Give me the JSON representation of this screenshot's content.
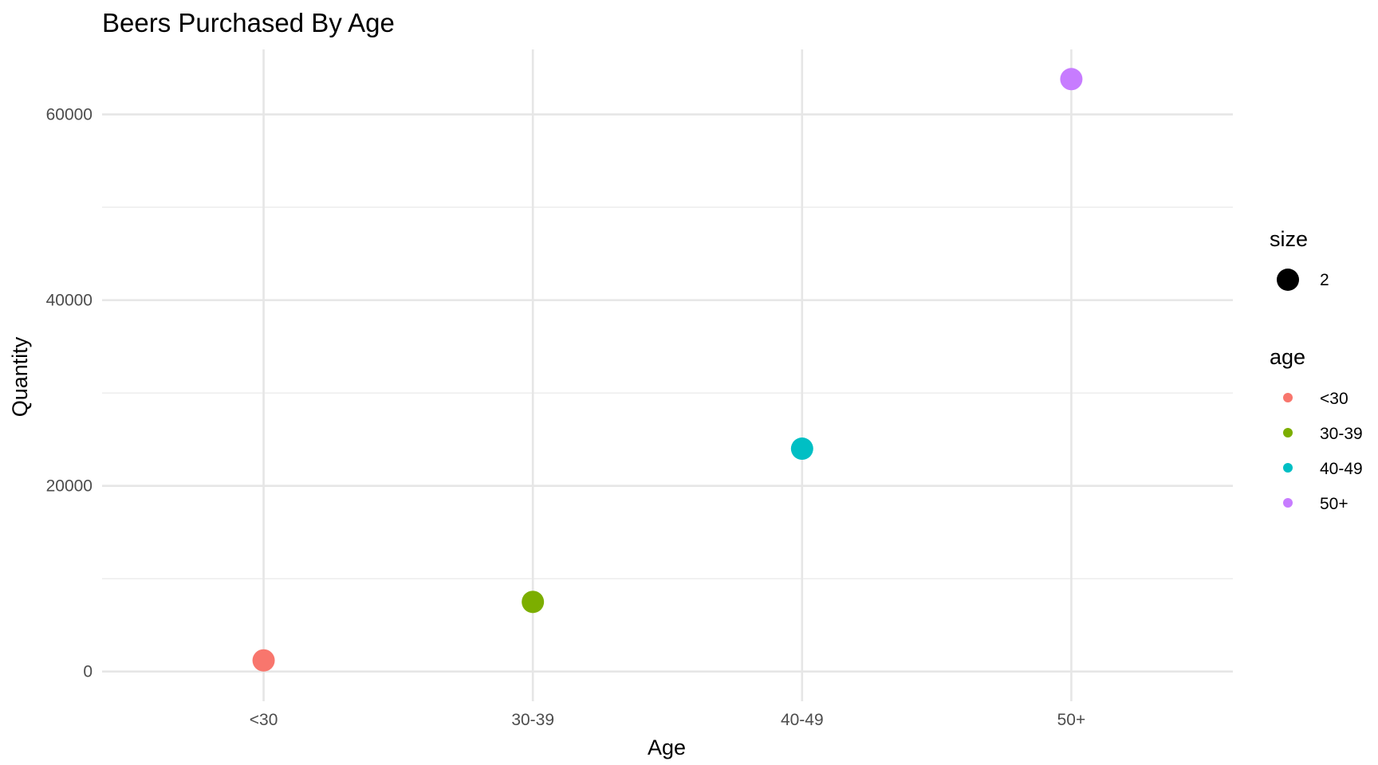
{
  "chart_data": {
    "type": "scatter",
    "title": "Beers Purchased By Age",
    "xlabel": "Age",
    "ylabel": "Quantity",
    "categories": [
      "<30",
      "30-39",
      "40-49",
      "50+"
    ],
    "values": [
      1200,
      7500,
      24000,
      63800
    ],
    "colors": [
      "#F8766D",
      "#7CAE00",
      "#00BFC4",
      "#C77CFF"
    ],
    "yticks": [
      0,
      20000,
      40000,
      60000
    ],
    "ylim": [
      -3200,
      67000
    ],
    "grid": true,
    "legend_position": "right",
    "legends": {
      "size": {
        "title": "size",
        "label": "2",
        "color": "#000000"
      },
      "age": {
        "title": "age",
        "items": [
          {
            "label": "<30",
            "color": "#F8766D"
          },
          {
            "label": "30-39",
            "color": "#7CAE00"
          },
          {
            "label": "40-49",
            "color": "#00BFC4"
          },
          {
            "label": "50+",
            "color": "#C77CFF"
          }
        ]
      }
    }
  }
}
